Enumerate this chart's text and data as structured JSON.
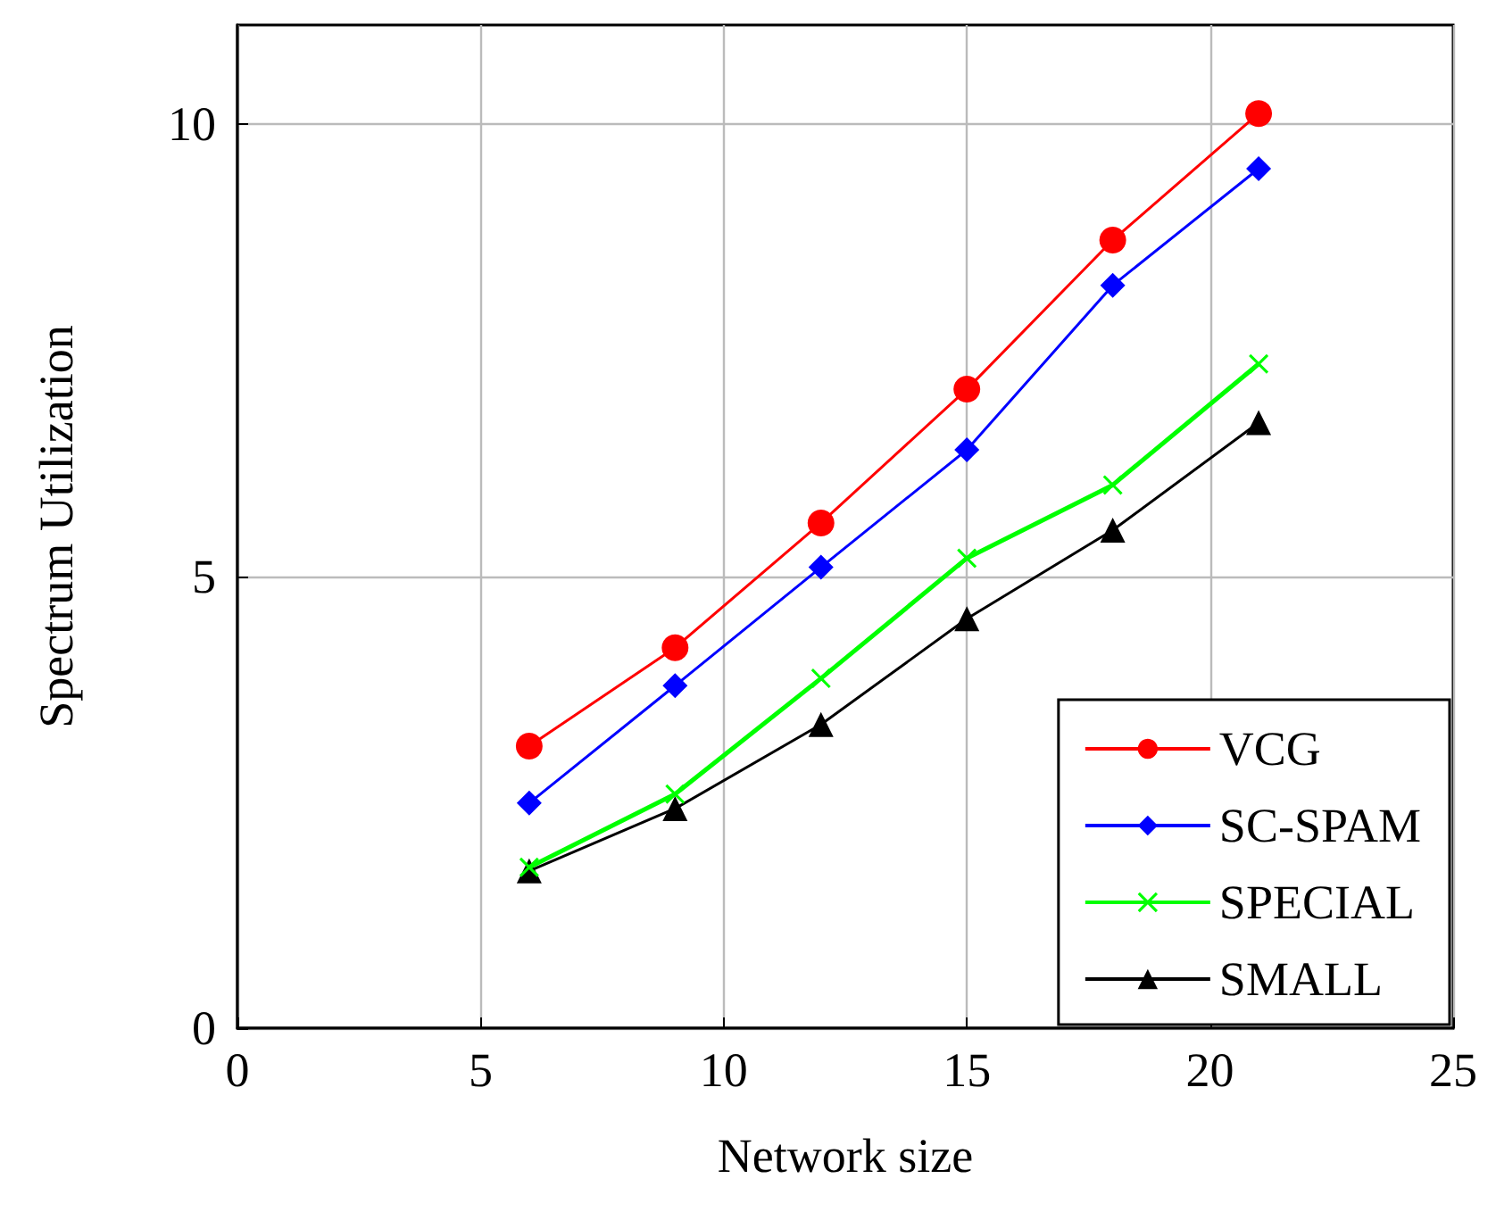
{
  "chart_data": {
    "type": "line",
    "xlabel": "Network size",
    "ylabel": "Spectrum Utilization",
    "x": [
      6,
      9,
      12,
      15,
      18,
      21
    ],
    "xlim": [
      0,
      25
    ],
    "xticks": [
      0,
      5,
      10,
      15,
      20,
      25
    ],
    "ylim": [
      0,
      11.1
    ],
    "yticks": [
      0,
      5,
      10
    ],
    "grid": true,
    "legend": "bottom right",
    "line_style": "solid",
    "series": [
      {
        "name": "VCG",
        "color": "#ff0000",
        "marker": "circle",
        "values": [
          3.12,
          4.21,
          5.59,
          7.07,
          8.72,
          10.12
        ]
      },
      {
        "name": "SC-SPAM",
        "color": "#0000ff",
        "marker": "diamond",
        "values": [
          2.49,
          3.79,
          5.1,
          6.4,
          8.22,
          9.51
        ]
      },
      {
        "name": "SPECIAL",
        "color": "#00ff00",
        "marker": "cross",
        "values": [
          1.78,
          2.59,
          3.87,
          5.2,
          6.01,
          7.35
        ]
      },
      {
        "name": "SMALL",
        "color": "#000000",
        "marker": "triangle",
        "values": [
          1.74,
          2.43,
          3.36,
          4.53,
          5.51,
          6.7
        ]
      }
    ]
  }
}
